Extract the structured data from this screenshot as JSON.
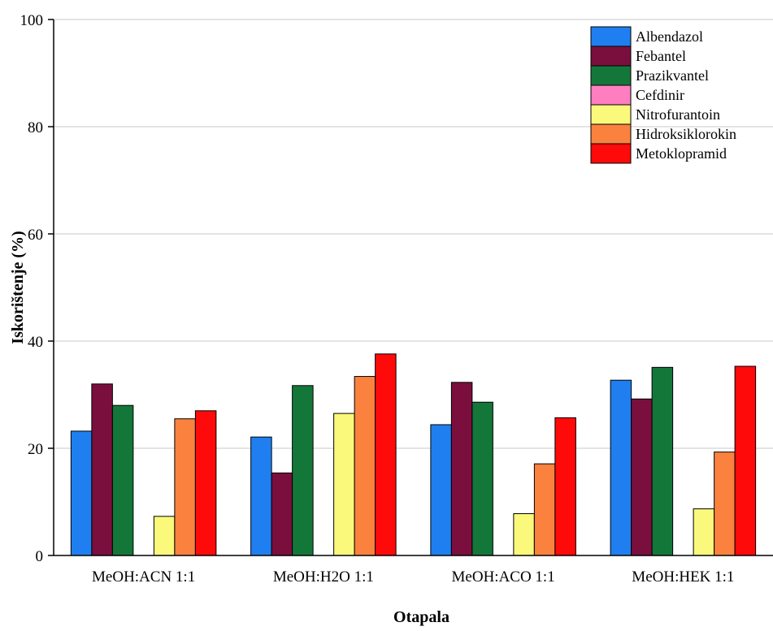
{
  "chart_data": {
    "type": "bar",
    "title": "",
    "xlabel": "Otapala",
    "ylabel": "Iskorištenje (%)",
    "ylim": [
      0,
      100
    ],
    "yticks": [
      "0",
      "20",
      "40",
      "60",
      "80",
      "100"
    ],
    "grid": "horizontal",
    "legend_position": "top-right",
    "categories": [
      "MeOH:ACN 1:1",
      "MeOH:H2O 1:1",
      "MeOH:ACO 1:1",
      "MeOH:HEK 1:1"
    ],
    "series": [
      {
        "name": "Albendazol",
        "color": "#1f7ff0",
        "values": [
          23.2,
          22.1,
          24.4,
          32.7
        ]
      },
      {
        "name": "Febantel",
        "color": "#7a0f3e",
        "values": [
          32.0,
          15.4,
          32.3,
          29.2
        ]
      },
      {
        "name": "Prazikvantel",
        "color": "#13773a",
        "values": [
          28.0,
          31.7,
          28.6,
          35.1
        ]
      },
      {
        "name": "Cefdinir",
        "color": "#ff7ebf",
        "values": [
          0,
          0,
          0,
          0
        ]
      },
      {
        "name": "Nitrofurantoin",
        "color": "#fbf97b",
        "values": [
          7.3,
          26.5,
          7.8,
          8.7
        ]
      },
      {
        "name": "Hidroksiklorokin",
        "color": "#fb813f",
        "values": [
          25.5,
          33.4,
          17.1,
          19.3
        ]
      },
      {
        "name": "Metoklopramid",
        "color": "#ff0a0a",
        "values": [
          27.0,
          37.6,
          25.7,
          35.3
        ]
      }
    ]
  }
}
